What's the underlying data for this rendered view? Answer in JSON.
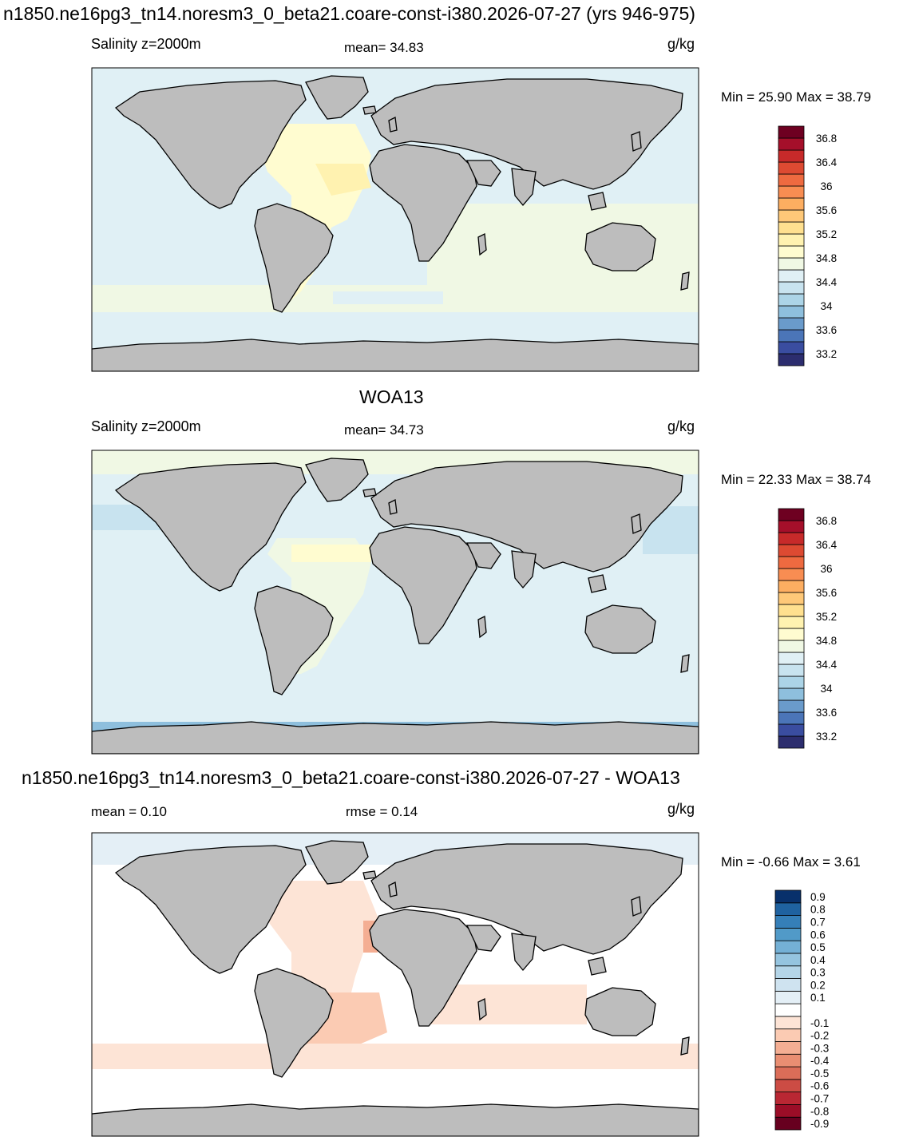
{
  "panels": [
    {
      "title": "n1850.ne16pg3_tn14.noresm3_0_beta21.coare-const-i380.2026-07-27 (yrs 946-975)",
      "left_label": "Salinity z=2000m",
      "center_label": "mean=  34.83",
      "units": "g/kg",
      "minmax": "Min =  25.90 Max =  38.79"
    },
    {
      "title": "WOA13",
      "left_label": "Salinity z=2000m",
      "center_label": "mean=  34.73",
      "units": "g/kg",
      "minmax": "Min =  22.33 Max =  38.74"
    },
    {
      "title": "n1850.ne16pg3_tn14.noresm3_0_beta21.coare-const-i380.2026-07-27 - WOA13",
      "left_label": "mean =   0.10",
      "center_label": "rmse =   0.14",
      "units": "g/kg",
      "minmax": "Min =  -0.66 Max =   3.61"
    }
  ],
  "chart_data": [
    {
      "type": "heatmap",
      "variable": "Salinity z=2000m",
      "units": "g/kg",
      "mean": 34.83,
      "min": 25.9,
      "max": 38.79,
      "colorbar": {
        "levels": [
          33.0,
          33.2,
          33.4,
          33.6,
          33.8,
          34.0,
          34.2,
          34.4,
          34.6,
          34.8,
          35.0,
          35.2,
          35.4,
          35.6,
          35.8,
          36.0,
          36.2,
          36.4,
          36.6,
          36.8,
          37.0
        ],
        "tick_labels": [
          "36.8",
          "36.4",
          "36",
          "35.6",
          "35.2",
          "34.8",
          "34.4",
          "34",
          "33.6",
          "33.2"
        ],
        "colors": [
          "#2c2d6e",
          "#3a4da0",
          "#4b75b8",
          "#6a9bcb",
          "#8ebfdd",
          "#acd4e7",
          "#c8e3ef",
          "#e0f0f5",
          "#f0f8e4",
          "#fffcd0",
          "#fff2b0",
          "#ffe08f",
          "#fec878",
          "#fdae61",
          "#f88d52",
          "#ee6a40",
          "#dd4a32",
          "#c72a2a",
          "#a50f2a",
          "#6e0021"
        ]
      }
    },
    {
      "type": "heatmap",
      "variable": "Salinity z=2000m",
      "units": "g/kg",
      "mean": 34.73,
      "min": 22.33,
      "max": 38.74,
      "colorbar": {
        "levels": [
          33.0,
          33.2,
          33.4,
          33.6,
          33.8,
          34.0,
          34.2,
          34.4,
          34.6,
          34.8,
          35.0,
          35.2,
          35.4,
          35.6,
          35.8,
          36.0,
          36.2,
          36.4,
          36.6,
          36.8,
          37.0
        ],
        "tick_labels": [
          "36.8",
          "36.4",
          "36",
          "35.6",
          "35.2",
          "34.8",
          "34.4",
          "34",
          "33.6",
          "33.2"
        ],
        "colors": [
          "#2c2d6e",
          "#3a4da0",
          "#4b75b8",
          "#6a9bcb",
          "#8ebfdd",
          "#acd4e7",
          "#c8e3ef",
          "#e0f0f5",
          "#f0f8e4",
          "#fffcd0",
          "#fff2b0",
          "#ffe08f",
          "#fec878",
          "#fdae61",
          "#f88d52",
          "#ee6a40",
          "#dd4a32",
          "#c72a2a",
          "#a50f2a",
          "#6e0021"
        ]
      }
    },
    {
      "type": "heatmap",
      "variable": "difference",
      "units": "g/kg",
      "mean": 0.1,
      "rmse": 0.14,
      "min": -0.66,
      "max": 3.61,
      "colorbar": {
        "tick_labels": [
          "0.9",
          "0.8",
          "0.7",
          "0.6",
          "0.5",
          "0.4",
          "0.3",
          "0.2",
          "0.1",
          "-0.1",
          "-0.2",
          "-0.3",
          "-0.4",
          "-0.5",
          "-0.6",
          "-0.7",
          "-0.8",
          "-0.9"
        ],
        "colors": [
          "#67001f",
          "#9b0d27",
          "#b92733",
          "#cc4c44",
          "#db6d58",
          "#e98e72",
          "#f4ae93",
          "#fbcbb3",
          "#fde4d6",
          "#ffffff",
          "#e4eff6",
          "#cfe3f0",
          "#b4d5e8",
          "#95c4df",
          "#74b0d5",
          "#519ac8",
          "#357fb8",
          "#1f62a0",
          "#08306b"
        ]
      }
    }
  ]
}
